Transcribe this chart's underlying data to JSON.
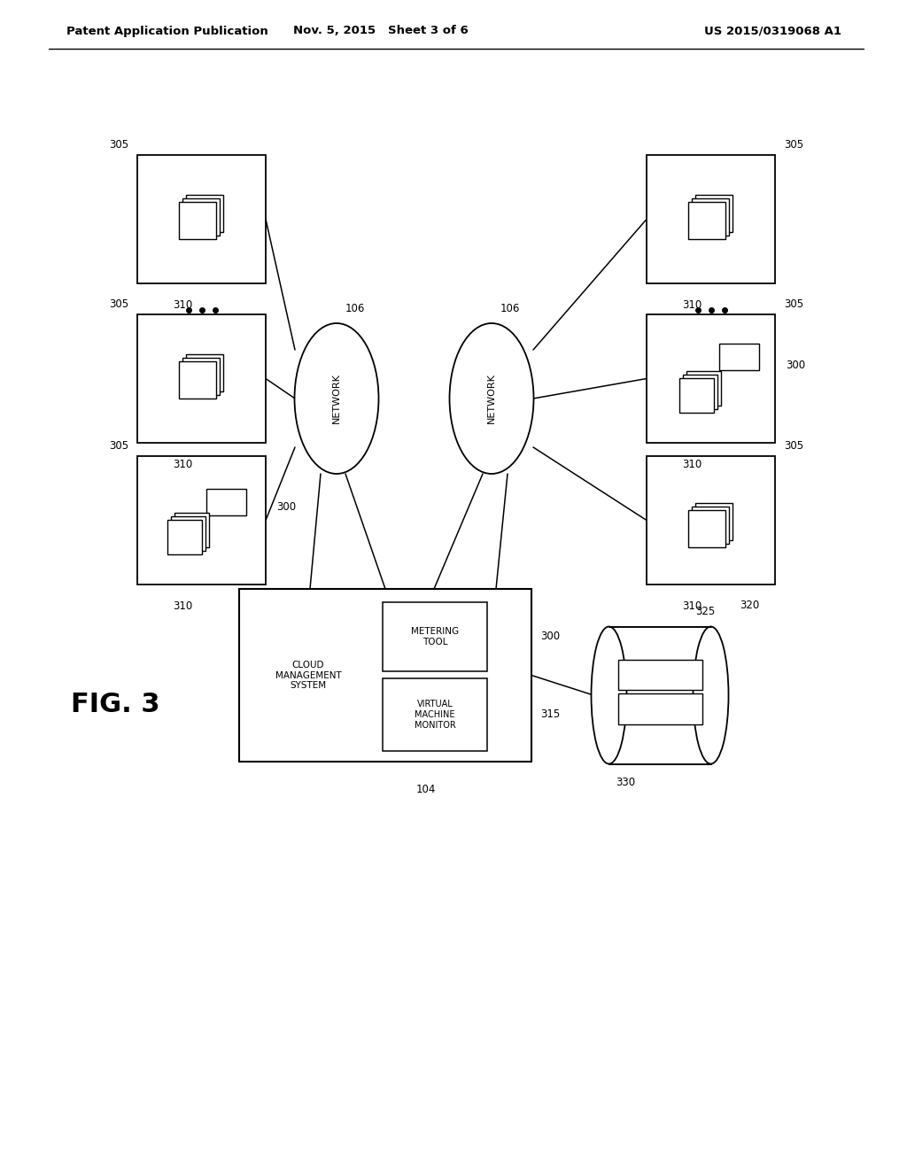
{
  "bg_color": "#ffffff",
  "header_left": "Patent Application Publication",
  "header_center": "Nov. 5, 2015   Sheet 3 of 6",
  "header_right": "US 2015/0319068 A1",
  "fig_label": "FIG. 3",
  "network_label": "NETWORK",
  "line_color": "#000000",
  "text_color": "#000000"
}
